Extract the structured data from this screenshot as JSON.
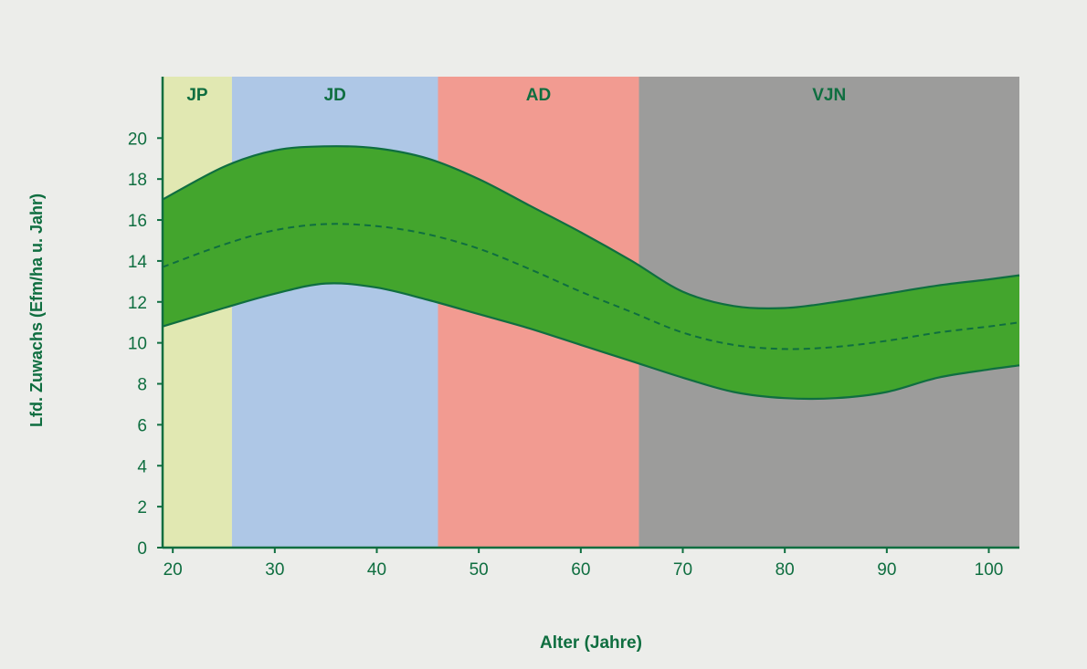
{
  "chart_data": {
    "type": "area",
    "xlabel": "Alter (Jahre)",
    "ylabel": "Lfd. Zuwachs (Efm/ha u. Jahr)",
    "xlim": [
      19,
      103
    ],
    "ylim": [
      0,
      23
    ],
    "xticks": [
      20,
      30,
      40,
      50,
      60,
      70,
      80,
      90,
      100
    ],
    "yticks": [
      0,
      2,
      4,
      6,
      8,
      10,
      12,
      14,
      16,
      18,
      20
    ],
    "grid": false,
    "phases": [
      {
        "label": "JP",
        "x_start": 19,
        "x_end": 25.8,
        "color": "#e1e8b2"
      },
      {
        "label": "JD",
        "x_start": 25.8,
        "x_end": 46,
        "color": "#aec7e6"
      },
      {
        "label": "AD",
        "x_start": 46,
        "x_end": 65.7,
        "color": "#f29b91"
      },
      {
        "label": "VJN",
        "x_start": 65.7,
        "x_end": 103,
        "color": "#9c9c9b"
      }
    ],
    "x": [
      19,
      25,
      30,
      35,
      40,
      45,
      50,
      55,
      60,
      65,
      70,
      75,
      80,
      85,
      90,
      95,
      100,
      103
    ],
    "series": [
      {
        "role": "upper",
        "values": [
          17.0,
          18.6,
          19.4,
          19.6,
          19.5,
          19.0,
          18.0,
          16.7,
          15.4,
          14.0,
          12.5,
          11.8,
          11.7,
          12.0,
          12.4,
          12.8,
          13.1,
          13.3
        ]
      },
      {
        "role": "mean",
        "values": [
          13.7,
          14.8,
          15.5,
          15.8,
          15.7,
          15.3,
          14.6,
          13.6,
          12.5,
          11.5,
          10.5,
          9.9,
          9.7,
          9.8,
          10.1,
          10.5,
          10.8,
          11.0
        ]
      },
      {
        "role": "lower",
        "values": [
          10.8,
          11.7,
          12.4,
          12.9,
          12.7,
          12.1,
          11.4,
          10.7,
          9.9,
          9.1,
          8.3,
          7.6,
          7.3,
          7.3,
          7.6,
          8.3,
          8.7,
          8.9
        ]
      }
    ],
    "colors": {
      "band": "#43a52d",
      "band_edge": "#0f6e40",
      "axis": "#0f6e40",
      "text": "#0f6e40",
      "background": "#ecedea"
    }
  }
}
